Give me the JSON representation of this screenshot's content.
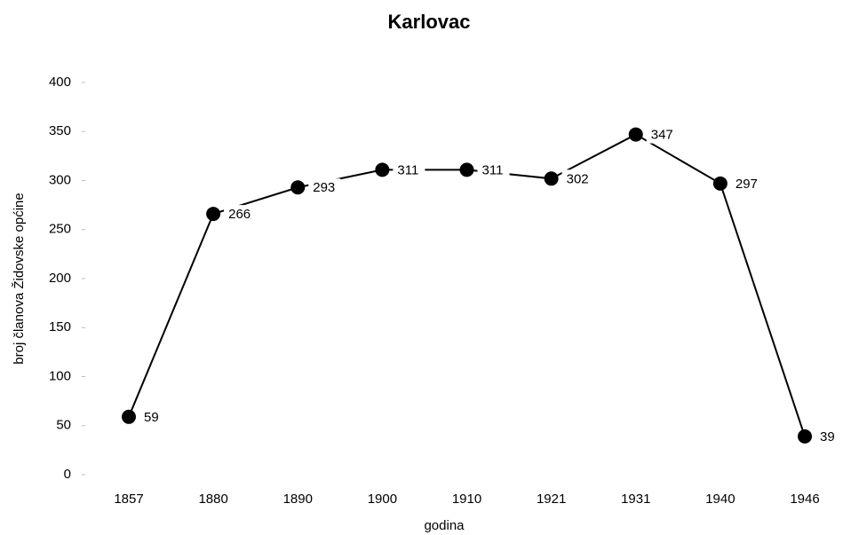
{
  "chart_data": {
    "type": "line",
    "title": "Karlovac",
    "x_label": "godina",
    "y_label": "broj članova Židovske općine",
    "categories": [
      "1857",
      "1880",
      "1890",
      "1900",
      "1910",
      "1921",
      "1931",
      "1940",
      "1946"
    ],
    "series": [
      {
        "name": "Karlovac",
        "color": "#000000",
        "values": [
          59,
          266,
          293,
          311,
          311,
          302,
          347,
          297,
          39
        ]
      }
    ],
    "ylim": [
      0,
      400
    ],
    "yticks": [
      0,
      50,
      100,
      150,
      200,
      250,
      300,
      350,
      400
    ],
    "grid": false,
    "data_labels": true
  }
}
